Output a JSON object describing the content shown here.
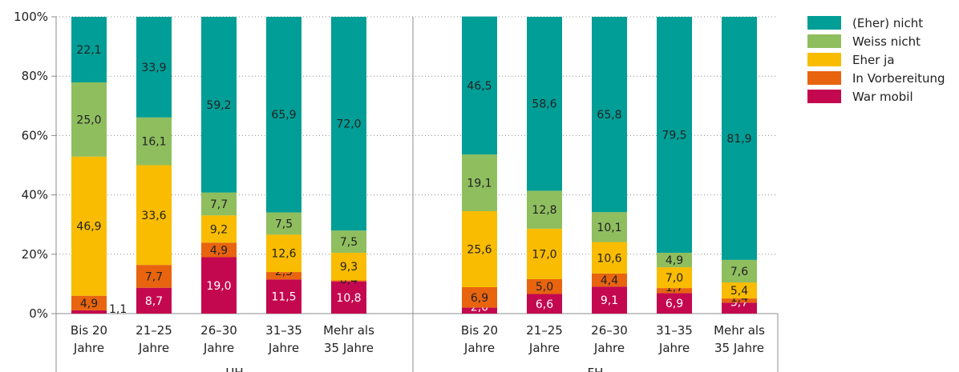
{
  "chart_data": {
    "type": "bar",
    "stacked": true,
    "ylim": [
      0,
      100
    ],
    "yticks": [
      "0%",
      "20%",
      "40%",
      "60%",
      "80%",
      "100%"
    ],
    "groups": [
      {
        "name": "UH",
        "categories": [
          [
            "Bis 20",
            "Jahre"
          ],
          [
            "21–25",
            "Jahre"
          ],
          [
            "26–30",
            "Jahre"
          ],
          [
            "31–35",
            "Jahre"
          ],
          [
            "Mehr als",
            "35 Jahre"
          ]
        ],
        "series": [
          {
            "name": "War mobil",
            "values": [
              1.1,
              8.7,
              19.0,
              11.5,
              10.8
            ],
            "labels": [
              "1,1",
              "8,7",
              "19,0",
              "11,5",
              "10,8"
            ]
          },
          {
            "name": "In Vorbereitung",
            "values": [
              4.9,
              7.7,
              4.9,
              2.5,
              0.4
            ],
            "labels": [
              "4,9",
              "7,7",
              "4,9",
              "2,5",
              "0,4"
            ]
          },
          {
            "name": "Eher ja",
            "values": [
              46.9,
              33.6,
              9.2,
              12.6,
              9.3
            ],
            "labels": [
              "46,9",
              "33,6",
              "9,2",
              "12,6",
              "9,3"
            ]
          },
          {
            "name": "Weiss nicht",
            "values": [
              25.0,
              16.1,
              7.7,
              7.5,
              7.5
            ],
            "labels": [
              "25,0",
              "16,1",
              "7,7",
              "7,5",
              "7,5"
            ]
          },
          {
            "name": "(Eher) nicht",
            "values": [
              22.1,
              33.9,
              59.2,
              65.9,
              72.0
            ],
            "labels": [
              "22,1",
              "33,9",
              "59,2",
              "65,9",
              "72,0"
            ]
          }
        ]
      },
      {
        "name": "FH",
        "categories": [
          [
            "Bis 20",
            "Jahre"
          ],
          [
            "21–25",
            "Jahre"
          ],
          [
            "26–30",
            "Jahre"
          ],
          [
            "31–35",
            "Jahre"
          ],
          [
            "Mehr als",
            "35 Jahre"
          ]
        ],
        "series": [
          {
            "name": "War mobil",
            "values": [
              2.0,
              6.6,
              9.1,
              6.9,
              3.7
            ],
            "labels": [
              "2,0",
              "6,6",
              "9,1",
              "6,9",
              "3,7"
            ]
          },
          {
            "name": "In Vorbereitung",
            "values": [
              6.9,
              5.0,
              4.4,
              1.7,
              1.4
            ],
            "labels": [
              "6,9",
              "5,0",
              "4,4",
              "1,7",
              "1,4"
            ]
          },
          {
            "name": "Eher ja",
            "values": [
              25.6,
              17.0,
              10.6,
              7.0,
              5.4
            ],
            "labels": [
              "25,6",
              "17,0",
              "10,6",
              "7,0",
              "5,4"
            ]
          },
          {
            "name": "Weiss nicht",
            "values": [
              19.1,
              12.8,
              10.1,
              4.9,
              7.6
            ],
            "labels": [
              "19,1",
              "12,8",
              "10,1",
              "4,9",
              "7,6"
            ]
          },
          {
            "name": "(Eher) nicht",
            "values": [
              46.5,
              58.6,
              65.8,
              79.5,
              81.9
            ],
            "labels": [
              "46,5",
              "58,6",
              "65,8",
              "79,5",
              "81,9"
            ]
          }
        ]
      }
    ],
    "legend": {
      "position": "right",
      "entries": [
        "(Eher) nicht",
        "Weiss nicht",
        "Eher ja",
        "In Vorbereitung",
        "War mobil"
      ]
    },
    "colors": {
      "War mobil": "#c4084f",
      "In Vorbereitung": "#e8640f",
      "Eher ja": "#f9bc00",
      "Weiss nicht": "#8fbe5f",
      "(Eher) nicht": "#009e96",
      "column_band": "#e8e8e8"
    },
    "label_colors": {
      "War mobil": "#ffffff",
      "In Vorbereitung": "#222222",
      "Eher ja": "#222222",
      "Weiss nicht": "#222222",
      "(Eher) nicht": "#222222"
    }
  }
}
